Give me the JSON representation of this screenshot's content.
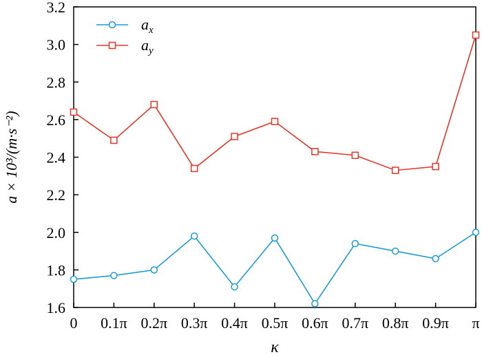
{
  "chart_data": {
    "type": "line",
    "xlabel": "κ",
    "ylabel": "a × 10³/(m·s⁻²)",
    "ylim": [
      1.6,
      3.2
    ],
    "yticks": [
      "1.6",
      "1.8",
      "2.0",
      "2.2",
      "2.4",
      "2.6",
      "2.8",
      "3.0",
      "3.2"
    ],
    "categories": [
      "0",
      "0.1π",
      "0.2π",
      "0.3π",
      "0.4π",
      "0.5π",
      "0.6π",
      "0.7π",
      "0.8π",
      "0.9π",
      "π"
    ],
    "legend_position": "top-left",
    "grid": false,
    "series": [
      {
        "name": "a_x",
        "legend_main": "a",
        "legend_sub": "x",
        "color": "#1a9ad6",
        "marker": "circle",
        "values": [
          1.75,
          1.77,
          1.8,
          1.98,
          1.71,
          1.97,
          1.62,
          1.94,
          1.9,
          1.86,
          2.0
        ]
      },
      {
        "name": "a_y",
        "legend_main": "a",
        "legend_sub": "y",
        "color": "#e8342a",
        "marker": "square",
        "values": [
          2.64,
          2.49,
          2.68,
          2.34,
          2.51,
          2.59,
          2.43,
          2.41,
          2.33,
          2.35,
          3.05
        ]
      }
    ]
  }
}
